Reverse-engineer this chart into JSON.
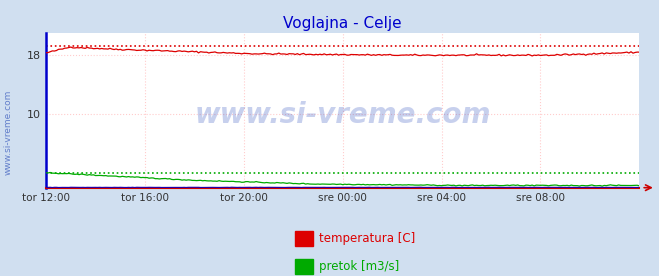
{
  "title": "Voglajna - Celje",
  "title_color": "#0000cc",
  "bg_color": "#d0dff0",
  "plot_bg_color": "#ffffff",
  "grid_color": "#ffcccc",
  "grid_style": "dotted",
  "xlim": [
    0,
    288
  ],
  "ylim": [
    0,
    21
  ],
  "yticks": [
    10,
    18
  ],
  "xtick_labels": [
    "tor 12:00",
    "tor 16:00",
    "tor 20:00",
    "sre 00:00",
    "sre 04:00",
    "sre 08:00"
  ],
  "xtick_positions": [
    0,
    48,
    96,
    144,
    192,
    240
  ],
  "left_border_color": "#0000cc",
  "bottom_border_color": "#cc0000",
  "watermark": "www.si-vreme.com",
  "watermark_color": "#2244bb",
  "watermark_alpha": 0.25,
  "legend": [
    {
      "label": "temperatura [C]",
      "color": "#dd0000"
    },
    {
      "label": "pretok [m3/s]",
      "color": "#00aa00"
    }
  ],
  "temp_max_line_y": 19.3,
  "flow_max_line_y": 2.0,
  "n_points": 288
}
